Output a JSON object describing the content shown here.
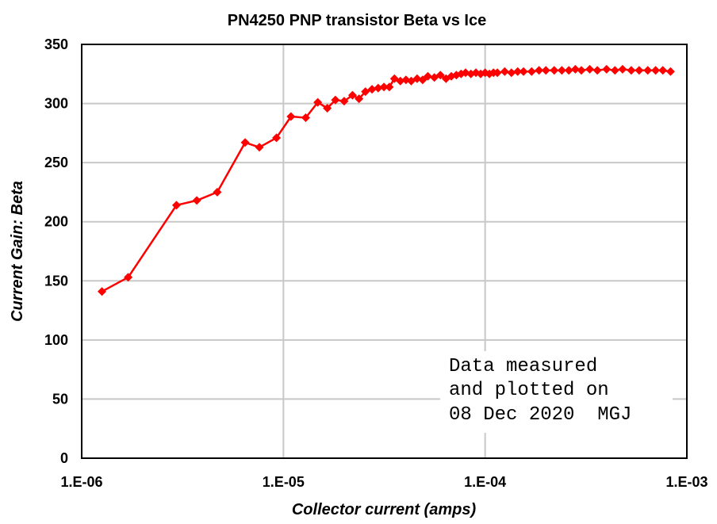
{
  "chart_data": {
    "type": "line",
    "title": "PN4250  PNP transistor  Beta vs Ice",
    "xlabel": "Collector current (amps)",
    "ylabel": "Current Gain: Beta",
    "x_scale": "log",
    "xlim": [
      1e-06,
      0.001
    ],
    "ylim": [
      0,
      350
    ],
    "x_ticks": [
      1e-06,
      1e-05,
      0.0001,
      0.001
    ],
    "x_tick_labels": [
      "1.E-06",
      "1.E-05",
      "1.E-04",
      "1.E-03"
    ],
    "y_ticks": [
      0,
      50,
      100,
      150,
      200,
      250,
      300,
      350
    ],
    "y_tick_labels": [
      "0",
      "50",
      "100",
      "150",
      "200",
      "250",
      "300",
      "350"
    ],
    "grid": true,
    "legend": "none",
    "annotation": [
      "Data measured",
      "and plotted on",
      "08 Dec 2020  MGJ"
    ],
    "color": "#ff0000",
    "series": [
      {
        "x": [
          1.26e-06,
          1.7e-06,
          2.95e-06,
          3.72e-06,
          4.7e-06,
          6.46e-06,
          7.6e-06,
          9.24e-06,
          1.09e-05,
          1.29e-05,
          1.48e-05,
          1.65e-05,
          1.81e-05,
          2e-05,
          2.2e-05,
          2.37e-05,
          2.55e-05,
          2.75e-05,
          2.95e-05,
          3.15e-05,
          3.35e-05,
          3.55e-05,
          3.8e-05,
          4.05e-05,
          4.3e-05,
          4.6e-05,
          4.9e-05,
          5.2e-05,
          5.6e-05,
          6e-05,
          6.4e-05,
          6.8e-05,
          7.2e-05,
          7.6e-05,
          8e-05,
          8.5e-05,
          9e-05,
          9.5e-05,
          0.0001,
          0.000105,
          0.00011,
          0.000115,
          0.000125,
          0.000135,
          0.000145,
          0.000155,
          0.00017,
          0.000185,
          0.0002,
          0.00022,
          0.00024,
          0.00026,
          0.00028,
          0.0003,
          0.00033,
          0.00036,
          0.0004,
          0.00044,
          0.00048,
          0.00053,
          0.00058,
          0.00064,
          0.0007,
          0.00076,
          0.00083
        ],
        "y": [
          141,
          153,
          214,
          218,
          225,
          267,
          263,
          271,
          289,
          288,
          301,
          296,
          303,
          302,
          307,
          304,
          310,
          312,
          313,
          314,
          314,
          321,
          319,
          320,
          319,
          321,
          320,
          323,
          322,
          324,
          321,
          323,
          324,
          325,
          326,
          325,
          326,
          325,
          326,
          325,
          326,
          326,
          327,
          326,
          327,
          327,
          327,
          328,
          328,
          328,
          328,
          328,
          329,
          328,
          329,
          328,
          329,
          328,
          329,
          328,
          328,
          328,
          328,
          328,
          327
        ]
      }
    ]
  }
}
